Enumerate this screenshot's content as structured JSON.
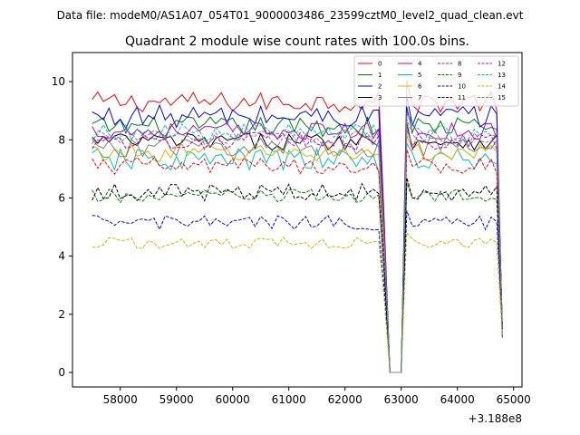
{
  "suptitle": "Data file: modeM0/AS1A07_054T01_9000003486_23599cztM0_level2_quad_clean.evt",
  "chart_data": {
    "type": "line",
    "title": "Quadrant 2 module wise count rates with 100.0s bins.",
    "xlabel": "",
    "ylabel": "",
    "x_offset_label": "+3.188e8",
    "xlim": [
      57150,
      65150
    ],
    "ylim": [
      -0.5,
      11.0
    ],
    "xticks": [
      58000,
      59000,
      60000,
      61000,
      62000,
      63000,
      64000,
      65000
    ],
    "yticks": [
      0,
      2,
      4,
      6,
      8,
      10
    ],
    "x_start": 57500,
    "x_step": 100,
    "n_points": 74,
    "legend_position": "top-right",
    "legend_columns": 4,
    "series": [
      {
        "name": "0",
        "color": "#ff0000",
        "dash": "solid",
        "base": 9.3,
        "amp": 0.35
      },
      {
        "name": "1",
        "color": "#008000",
        "dash": "solid",
        "base": 8.45,
        "amp": 0.35
      },
      {
        "name": "2",
        "color": "#0000ff",
        "dash": "solid",
        "base": 8.8,
        "amp": 0.4
      },
      {
        "name": "3",
        "color": "#000000",
        "dash": "solid",
        "base": 7.95,
        "amp": 0.3
      },
      {
        "name": "4",
        "color": "#c000c0",
        "dash": "solid",
        "base": 8.3,
        "amp": 0.3
      },
      {
        "name": "5",
        "color": "#00bfbf",
        "dash": "solid",
        "base": 7.3,
        "amp": 0.4
      },
      {
        "name": "6",
        "color": "#e0b000",
        "dash": "solid",
        "base": 7.55,
        "amp": 0.3
      },
      {
        "name": "7",
        "color": "#808080",
        "dash": "solid",
        "base": 7.75,
        "amp": 0.35
      },
      {
        "name": "8",
        "color": "#ff0000",
        "dash": "dashed",
        "base": 7.1,
        "amp": 0.3
      },
      {
        "name": "9",
        "color": "#008000",
        "dash": "dashed",
        "base": 6.05,
        "amp": 0.25
      },
      {
        "name": "10",
        "color": "#0000ff",
        "dash": "dashed",
        "base": 5.15,
        "amp": 0.25
      },
      {
        "name": "11",
        "color": "#000000",
        "dash": "dashed",
        "base": 6.2,
        "amp": 0.3
      },
      {
        "name": "12",
        "color": "#c000c0",
        "dash": "dashed",
        "base": 7.95,
        "amp": 0.3
      },
      {
        "name": "13",
        "color": "#00bfbf",
        "dash": "dashed",
        "base": 8.25,
        "amp": 0.3
      },
      {
        "name": "14",
        "color": "#c0c000",
        "dash": "dashed",
        "base": 4.45,
        "amp": 0.2
      },
      {
        "name": "15",
        "color": "#808080",
        "dash": "dashed",
        "base": 8.05,
        "amp": 0.3
      }
    ]
  }
}
